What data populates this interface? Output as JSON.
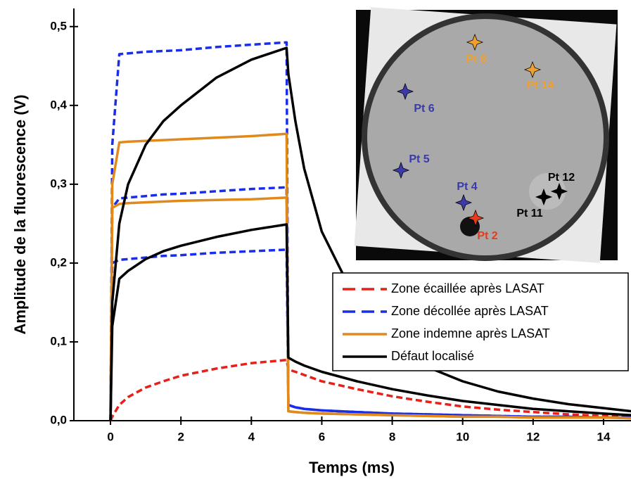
{
  "chart_data": {
    "type": "line",
    "xlabel": "Temps (ms)",
    "ylabel": "Amplitude de la fluorescence (V)",
    "xlim": [
      -1.04,
      14.78
    ],
    "ylim": [
      0,
      0.523
    ],
    "xticks": [
      0,
      2,
      4,
      6,
      8,
      10,
      12,
      14
    ],
    "yticks": [
      {
        "value": 0,
        "label": "0,0"
      },
      {
        "value": 0.1,
        "label": "0,1"
      },
      {
        "value": 0.2,
        "label": "0,2"
      },
      {
        "value": 0.3,
        "label": "0,3"
      },
      {
        "value": 0.4,
        "label": "0,4"
      },
      {
        "value": 0.5,
        "label": "0,5"
      }
    ],
    "x": [
      0,
      0.05,
      0.25,
      0.5,
      1,
      1.5,
      2,
      3,
      4,
      5,
      5.05,
      5.25,
      5.5,
      6,
      7,
      8,
      9,
      10,
      11,
      12,
      13,
      14,
      14.8
    ],
    "series": [
      {
        "name": "Zone écaillée après LASAT",
        "color": "#e8201a",
        "dashed": true,
        "curves": [
          [
            0,
            0.005,
            0.02,
            0.03,
            0.042,
            0.05,
            0.057,
            0.066,
            0.073,
            0.077,
            0.065,
            0.062,
            0.058,
            0.05,
            0.04,
            0.031,
            0.024,
            0.018,
            0.014,
            0.011,
            0.008,
            0.006,
            0.005
          ]
        ]
      },
      {
        "name": "Zone décollée après LASAT",
        "color": "#1a2ee8",
        "dashed": true,
        "curves": [
          [
            0,
            0.35,
            0.465,
            0.466,
            0.468,
            0.469,
            0.47,
            0.474,
            0.477,
            0.48,
            0.02,
            0.017,
            0.015,
            0.013,
            0.011,
            0.009,
            0.008,
            0.007,
            0.006,
            0.005,
            0.005,
            0.004,
            0.004
          ],
          [
            0,
            0.27,
            0.282,
            0.283,
            0.285,
            0.287,
            0.288,
            0.291,
            0.294,
            0.296,
            0.02,
            0.017,
            0.015,
            0.013,
            0.011,
            0.009,
            0.008,
            0.007,
            0.006,
            0.005,
            0.005,
            0.004,
            0.004
          ],
          [
            0,
            0.2,
            0.204,
            0.205,
            0.207,
            0.209,
            0.21,
            0.213,
            0.215,
            0.217,
            0.02,
            0.017,
            0.015,
            0.013,
            0.011,
            0.009,
            0.008,
            0.007,
            0.006,
            0.005,
            0.005,
            0.004,
            0.004
          ]
        ]
      },
      {
        "name": "Zone indemne après LASAT",
        "color": "#e08a1e",
        "dashed": false,
        "curves": [
          [
            0,
            0.3,
            0.353,
            0.354,
            0.355,
            0.356,
            0.357,
            0.359,
            0.361,
            0.364,
            0.012,
            0.011,
            0.01,
            0.009,
            0.008,
            0.007,
            0.006,
            0.005,
            0.005,
            0.004,
            0.004,
            0.004,
            0.003
          ],
          [
            0,
            0.27,
            0.275,
            0.276,
            0.277,
            0.278,
            0.279,
            0.28,
            0.281,
            0.283,
            0.012,
            0.011,
            0.01,
            0.009,
            0.008,
            0.007,
            0.006,
            0.005,
            0.005,
            0.004,
            0.004,
            0.004,
            0.003
          ]
        ]
      },
      {
        "name": "Défaut localisé",
        "color": "#000000",
        "dashed": false,
        "curves": [
          [
            0,
            0.15,
            0.25,
            0.3,
            0.35,
            0.38,
            0.4,
            0.435,
            0.458,
            0.473,
            0.44,
            0.38,
            0.32,
            0.24,
            0.15,
            0.1,
            0.068,
            0.05,
            0.037,
            0.028,
            0.021,
            0.016,
            0.012
          ],
          [
            0,
            0.12,
            0.18,
            0.19,
            0.205,
            0.215,
            0.222,
            0.233,
            0.242,
            0.249,
            0.08,
            0.075,
            0.07,
            0.062,
            0.05,
            0.04,
            0.032,
            0.025,
            0.02,
            0.015,
            0.012,
            0.009,
            0.007
          ]
        ]
      }
    ],
    "annotations": [
      {
        "text": "Pt 8",
        "color": "#f0a030"
      },
      {
        "text": "Pt 14",
        "color": "#f0a030"
      },
      {
        "text": "Pt 6",
        "color": "#3a3aa8"
      },
      {
        "text": "Pt 5",
        "color": "#3a3aa8"
      },
      {
        "text": "Pt 4",
        "color": "#3a3aa8"
      },
      {
        "text": "Pt 12",
        "color": "#000000"
      },
      {
        "text": "Pt 11",
        "color": "#000000"
      },
      {
        "text": "Pt 2",
        "color": "#e83a1a"
      }
    ]
  }
}
